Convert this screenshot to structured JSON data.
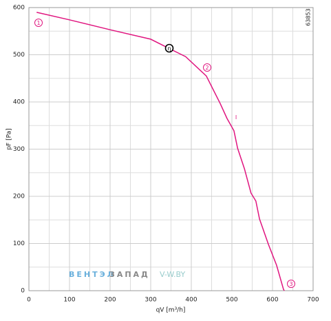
{
  "chart_data": {
    "type": "line",
    "xlabel": "qV [m³/h]",
    "ylabel": "pF [Pa]",
    "x": [
      19,
      100,
      200,
      300,
      344,
      386,
      437,
      471,
      488,
      505,
      514,
      531,
      547,
      559,
      568,
      590,
      610,
      627,
      629
    ],
    "series": [
      {
        "color": "#e0157f",
        "values": [
          590,
          574,
          553,
          533,
          514,
          496,
          455,
          397,
          365,
          339,
          302,
          258,
          207,
          190,
          152,
          98,
          54,
          3,
          0
        ]
      }
    ],
    "xlim": [
      0,
      700
    ],
    "ylim": [
      0,
      600
    ],
    "xticks": [
      0,
      100,
      200,
      300,
      400,
      500,
      600,
      700
    ],
    "yticks": [
      0,
      100,
      200,
      300,
      400,
      500,
      600
    ],
    "grid": true,
    "annotations": [
      "1",
      "2",
      "3",
      "η",
      "I",
      "63853"
    ],
    "watermark": [
      "ВЕНТЭЛ",
      "ЗАПАД",
      "V-W.BY"
    ]
  }
}
